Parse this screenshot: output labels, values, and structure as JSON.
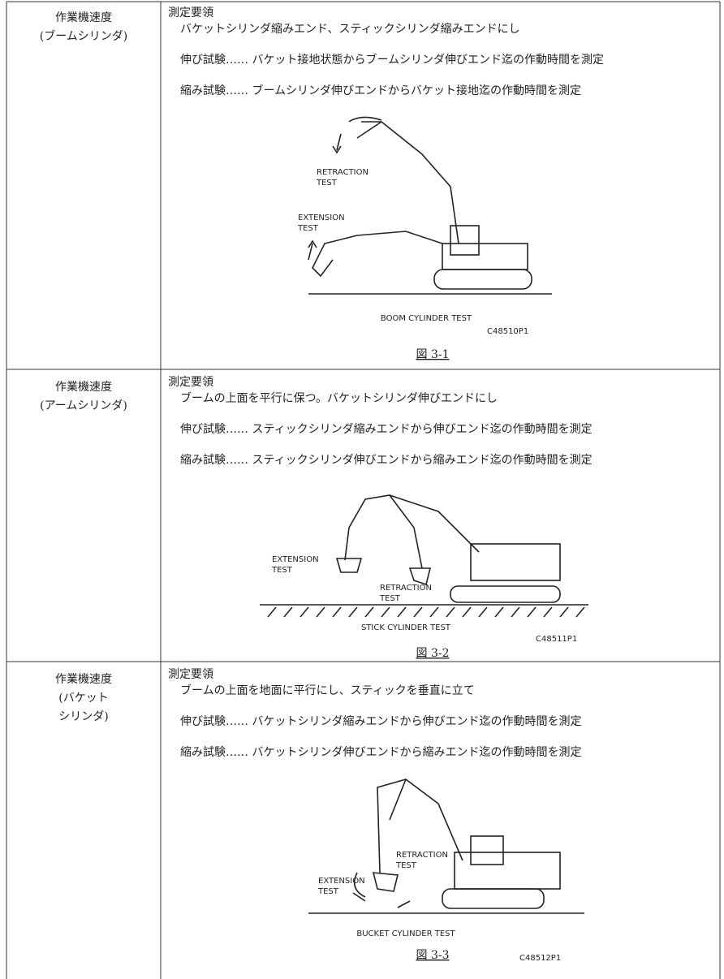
{
  "rows": [
    {
      "label": [
        "作業機速度",
        "(ブームシリンダ)"
      ],
      "heading": "測定要領",
      "setup": "バケットシリンダ縮みエンド、スティックシリンダ縮みエンドにし",
      "extension": "伸び試験‥‥‥ バケット接地状態からブームシリンダ伸びエンド迄の作動時間を測定",
      "retraction": "縮み試験‥‥‥ ブームシリンダ伸びエンドからバケット接地迄の作動時間を測定",
      "figure": {
        "retraction_label": [
          "RETRACTION",
          "TEST"
        ],
        "extension_label": [
          "EXTENSION",
          "TEST"
        ],
        "title": "BOOM CYLINDER TEST",
        "code": "C48510P1",
        "caption": "図 3-1"
      }
    },
    {
      "label": [
        "作業機速度",
        "(アームシリンダ)"
      ],
      "heading": "測定要領",
      "setup": "ブームの上面を平行に保つ。バケットシリンダ伸びエンドにし",
      "extension": "伸び試験‥‥‥ スティックシリンダ縮みエンドから伸びエンド迄の作動時間を測定",
      "retraction": "縮み試験‥‥‥ スティックシリンダ伸びエンドから縮みエンド迄の作動時間を測定",
      "figure": {
        "retraction_label": [
          "RETRACTION",
          "TEST"
        ],
        "extension_label": [
          "EXTENSION",
          "TEST"
        ],
        "title": "STICK CYLINDER TEST",
        "code": "C48511P1",
        "caption": "図 3-2"
      }
    },
    {
      "label": [
        "作業機速度",
        "(バケット",
        "シリンダ)"
      ],
      "heading": "測定要領",
      "setup": "ブームの上面を地面に平行にし、スティックを垂直に立て",
      "extension": "伸び試験‥‥‥ バケットシリンダ縮みエンドから伸びエンド迄の作動時間を測定",
      "retraction": "縮み試験‥‥‥ バケットシリンダ伸びエンドから縮みエンド迄の作動時間を測定",
      "figure": {
        "retraction_label": [
          "RETRACTION",
          "TEST"
        ],
        "extension_label": [
          "EXTENSION",
          "TEST"
        ],
        "title": "BUCKET CYLINDER TEST",
        "code": "C48512P1",
        "caption": "図 3-3"
      }
    }
  ]
}
